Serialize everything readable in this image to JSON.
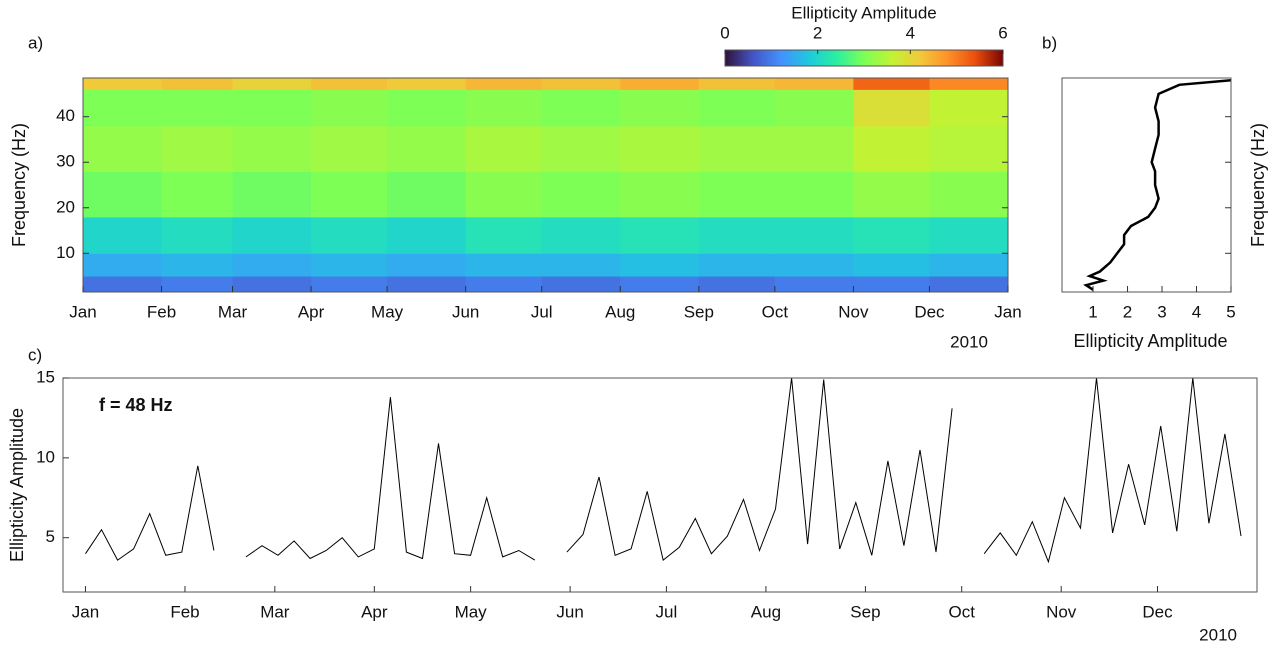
{
  "chart_data": [
    {
      "type": "heatmap",
      "panel_label": "a)",
      "ylabel": "Frequency (Hz)",
      "year_label": "2010",
      "xlim": [
        0,
        365
      ],
      "xticks": [
        {
          "value": 0,
          "label": "Jan"
        },
        {
          "value": 31,
          "label": "Feb"
        },
        {
          "value": 59,
          "label": "Mar"
        },
        {
          "value": 90,
          "label": "Apr"
        },
        {
          "value": 120,
          "label": "May"
        },
        {
          "value": 151,
          "label": "Jun"
        },
        {
          "value": 181,
          "label": "Jul"
        },
        {
          "value": 212,
          "label": "Aug"
        },
        {
          "value": 243,
          "label": "Sep"
        },
        {
          "value": 273,
          "label": "Oct"
        },
        {
          "value": 304,
          "label": "Nov"
        },
        {
          "value": 334,
          "label": "Dec"
        },
        {
          "value": 365,
          "label": "Jan"
        }
      ],
      "ylim": [
        1.5,
        48.5
      ],
      "yticks": [
        10,
        20,
        30,
        40
      ],
      "x": [
        0,
        31,
        59,
        90,
        120,
        151,
        181,
        212,
        243,
        273,
        304,
        334,
        365
      ],
      "y": [
        1.5,
        5,
        10,
        18,
        28,
        38,
        46,
        48.5
      ],
      "values": [
        [
          0.9,
          1.0,
          0.9,
          1.0,
          0.9,
          1.0,
          0.9,
          1.0,
          0.9,
          1.0,
          1.0,
          0.9
        ],
        [
          1.5,
          1.6,
          1.5,
          1.6,
          1.5,
          1.6,
          1.6,
          1.7,
          1.6,
          1.6,
          1.7,
          1.6
        ],
        [
          2.0,
          2.1,
          2.0,
          2.1,
          2.0,
          2.2,
          2.1,
          2.2,
          2.1,
          2.1,
          2.2,
          2.1
        ],
        [
          2.9,
          3.0,
          2.9,
          3.0,
          2.9,
          3.1,
          3.0,
          3.1,
          3.0,
          3.0,
          3.2,
          3.1
        ],
        [
          3.2,
          3.3,
          3.2,
          3.3,
          3.2,
          3.4,
          3.3,
          3.4,
          3.3,
          3.3,
          3.6,
          3.5
        ],
        [
          3.0,
          3.0,
          3.0,
          3.1,
          3.0,
          3.1,
          3.0,
          3.1,
          3.0,
          3.1,
          3.9,
          3.6
        ],
        [
          4.2,
          4.3,
          4.1,
          4.3,
          4.2,
          4.4,
          4.3,
          4.5,
          4.3,
          4.4,
          5.2,
          4.9
        ]
      ],
      "colorbar": {
        "label": "Ellipticity Amplitude",
        "lim": [
          0,
          6
        ],
        "ticks": [
          0,
          2,
          4,
          6
        ]
      }
    },
    {
      "type": "line",
      "panel_label": "b)",
      "xlabel": "Ellipticity Amplitude",
      "ylabel": "Frequency (Hz)",
      "color": "#000000",
      "xlim": [
        0.1,
        5
      ],
      "xticks": [
        1,
        2,
        3,
        4,
        5
      ],
      "ylim": [
        1.5,
        48.5
      ],
      "yticks": [
        10,
        20,
        30,
        40
      ],
      "y": [
        2,
        3,
        4,
        5,
        6,
        8,
        10,
        12,
        14,
        16,
        18,
        20,
        22,
        25,
        28,
        30,
        33,
        36,
        39,
        42,
        45,
        47,
        48
      ],
      "values": [
        1.0,
        0.8,
        1.3,
        0.9,
        1.2,
        1.5,
        1.7,
        1.9,
        1.9,
        2.1,
        2.6,
        2.8,
        2.9,
        2.8,
        2.8,
        2.7,
        2.8,
        2.9,
        2.9,
        2.8,
        2.9,
        3.5,
        5.0
      ]
    },
    {
      "type": "line",
      "panel_label": "c)",
      "ylabel": "Ellipticity Amplitude",
      "annotation": "f = 48 Hz",
      "year_label": "2010",
      "color": "#000000",
      "xlim": [
        -7,
        365
      ],
      "xticks": [
        {
          "value": 0,
          "label": "Jan"
        },
        {
          "value": 31,
          "label": "Feb"
        },
        {
          "value": 59,
          "label": "Mar"
        },
        {
          "value": 90,
          "label": "Apr"
        },
        {
          "value": 120,
          "label": "May"
        },
        {
          "value": 151,
          "label": "Jun"
        },
        {
          "value": 181,
          "label": "Jul"
        },
        {
          "value": 212,
          "label": "Aug"
        },
        {
          "value": 243,
          "label": "Sep"
        },
        {
          "value": 273,
          "label": "Oct"
        },
        {
          "value": 304,
          "label": "Nov"
        },
        {
          "value": 334,
          "label": "Dec"
        }
      ],
      "ylim": [
        1.6,
        15
      ],
      "yticks": [
        5,
        10,
        15
      ],
      "x": [
        0,
        5,
        10,
        15,
        20,
        25,
        30,
        35,
        40,
        45,
        50,
        55,
        60,
        65,
        70,
        75,
        80,
        85,
        90,
        95,
        100,
        105,
        110,
        115,
        120,
        125,
        130,
        135,
        140,
        145,
        150,
        155,
        160,
        165,
        170,
        175,
        180,
        185,
        190,
        195,
        200,
        205,
        210,
        215,
        220,
        225,
        230,
        235,
        240,
        245,
        250,
        255,
        260,
        265,
        270,
        275,
        280,
        285,
        290,
        295,
        300,
        305,
        310,
        315,
        320,
        325,
        330,
        335,
        340,
        345,
        350,
        355,
        360
      ],
      "values": [
        4.0,
        5.5,
        3.6,
        4.3,
        6.5,
        3.9,
        4.1,
        9.5,
        4.2,
        null,
        3.8,
        4.5,
        3.9,
        4.8,
        3.7,
        4.2,
        5.0,
        3.8,
        4.3,
        13.8,
        4.1,
        3.7,
        10.9,
        4.0,
        3.9,
        7.5,
        3.8,
        4.2,
        3.6,
        null,
        4.1,
        5.2,
        8.8,
        3.9,
        4.3,
        7.9,
        3.6,
        4.4,
        6.2,
        4.0,
        5.1,
        7.4,
        4.2,
        6.8,
        15,
        4.6,
        14.9,
        4.3,
        7.2,
        3.9,
        9.8,
        4.5,
        10.5,
        4.1,
        13.1,
        null,
        4.0,
        5.3,
        3.9,
        6.0,
        3.5,
        7.5,
        5.6,
        15,
        5.3,
        9.6,
        5.8,
        12.0,
        5.4,
        15,
        5.9,
        11.5,
        5.1
      ]
    }
  ]
}
